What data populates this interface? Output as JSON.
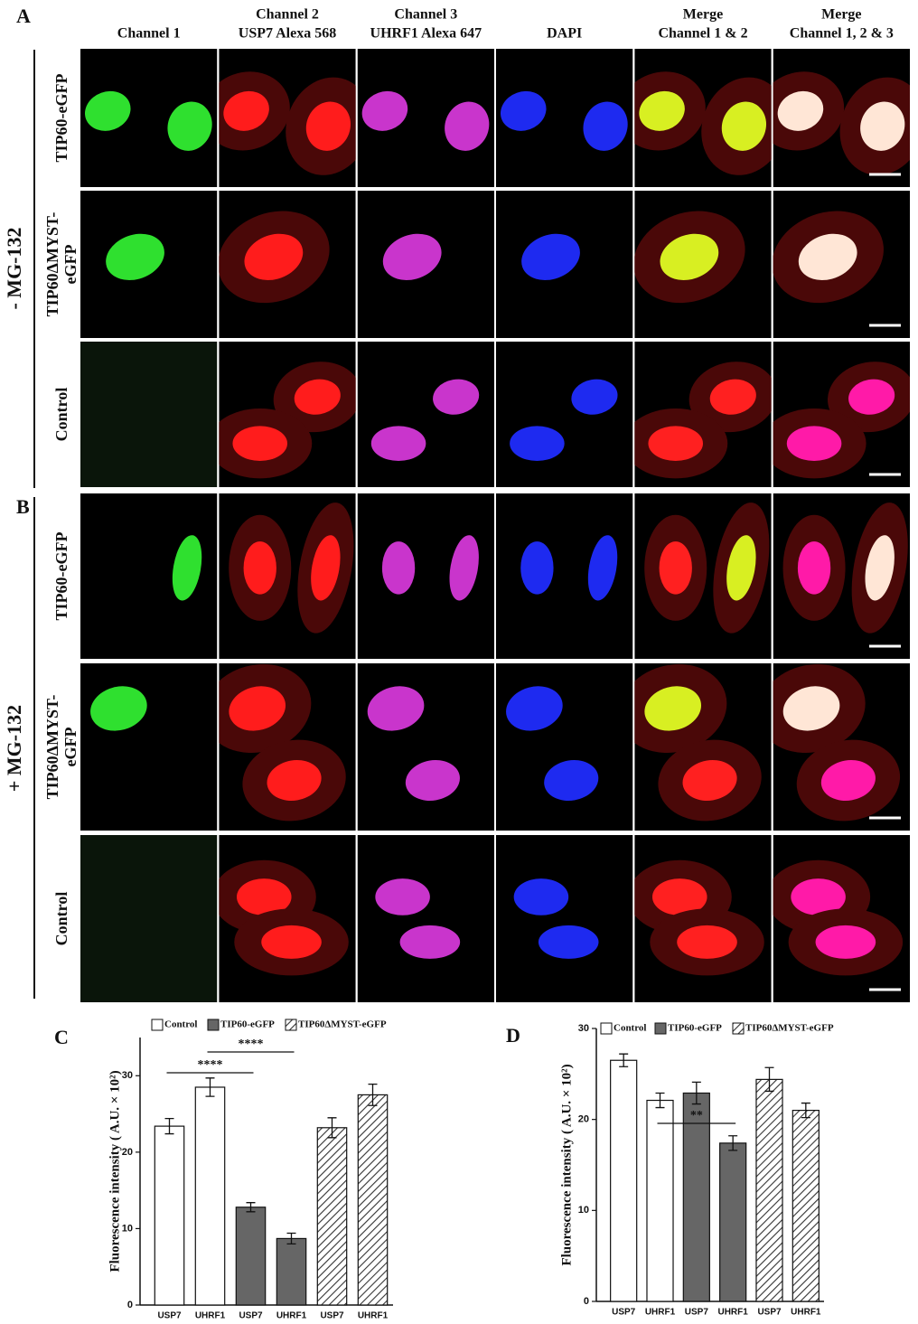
{
  "panel_labels": [
    "A",
    "B",
    "C",
    "D"
  ],
  "columns": [
    [
      "Channel 1"
    ],
    [
      "Channel 2",
      "USP7 Alexa 568"
    ],
    [
      "Channel 3",
      "UHRF1 Alexa 647"
    ],
    [
      "DAPI"
    ],
    [
      "Merge",
      "Channel 1 & 2"
    ],
    [
      "Merge",
      "Channel 1, 2 & 3"
    ]
  ],
  "groups": [
    {
      "label": "- MG-132",
      "rows": [
        [
          "TIP60-eGFP"
        ],
        [
          "TIP60ΔMYST-",
          "eGFP"
        ],
        [
          "Control"
        ]
      ]
    },
    {
      "label": "+ MG-132",
      "rows": [
        [
          "TIP60-eGFP"
        ],
        [
          "TIP60ΔMYST-",
          "eGFP"
        ],
        [
          "Control"
        ]
      ]
    }
  ],
  "chart_data": [
    {
      "type": "bar",
      "ylabel": "Fluorescence intensity ( A.U. × 10²)",
      "categories": [
        "USP7",
        "UHRF1",
        "USP7",
        "UHRF1",
        "USP7",
        "UHRF1"
      ],
      "series": [
        {
          "name": "Control",
          "color": "#ffffff",
          "pattern": "solid",
          "values": [
            23.4,
            28.5,
            null,
            null,
            null,
            null
          ],
          "errors": [
            1.0,
            1.2,
            null,
            null,
            null,
            null
          ]
        },
        {
          "name": "TIP60-eGFP",
          "color": "#666666",
          "pattern": "solid",
          "values": [
            null,
            null,
            12.8,
            8.7,
            null,
            null
          ],
          "errors": [
            null,
            null,
            0.6,
            0.7,
            null,
            null
          ]
        },
        {
          "name": "TIP60ΔMYST-eGFP",
          "color": "#ffffff",
          "pattern": "hatch",
          "values": [
            null,
            null,
            null,
            null,
            23.2,
            27.5
          ],
          "errors": [
            null,
            null,
            null,
            null,
            1.3,
            1.4
          ]
        }
      ],
      "ylim": [
        0,
        35
      ],
      "yticks": [
        0,
        10,
        20,
        30
      ],
      "annotations": [
        "****",
        "****"
      ]
    },
    {
      "type": "bar",
      "ylabel": "Fluorescence intensity ( A.U. × 10²)",
      "categories": [
        "USP7",
        "UHRF1",
        "USP7",
        "UHRF1",
        "USP7",
        "UHRF1"
      ],
      "series": [
        {
          "name": "Control",
          "color": "#ffffff",
          "pattern": "solid",
          "values": [
            26.5,
            22.1,
            null,
            null,
            null,
            null
          ],
          "errors": [
            0.7,
            0.8,
            null,
            null,
            null,
            null
          ]
        },
        {
          "name": "TIP60-eGFP",
          "color": "#666666",
          "pattern": "solid",
          "values": [
            null,
            null,
            22.9,
            17.4,
            null,
            null
          ],
          "errors": [
            null,
            null,
            1.2,
            0.8,
            null,
            null
          ]
        },
        {
          "name": "TIP60ΔMYST-eGFP",
          "color": "#ffffff",
          "pattern": "hatch",
          "values": [
            null,
            null,
            null,
            null,
            24.4,
            21.0
          ],
          "errors": [
            null,
            null,
            null,
            null,
            1.3,
            0.8
          ]
        }
      ],
      "ylim": [
        0,
        30
      ],
      "yticks": [
        0,
        10,
        20,
        30
      ],
      "annotations": [
        "**"
      ]
    }
  ]
}
